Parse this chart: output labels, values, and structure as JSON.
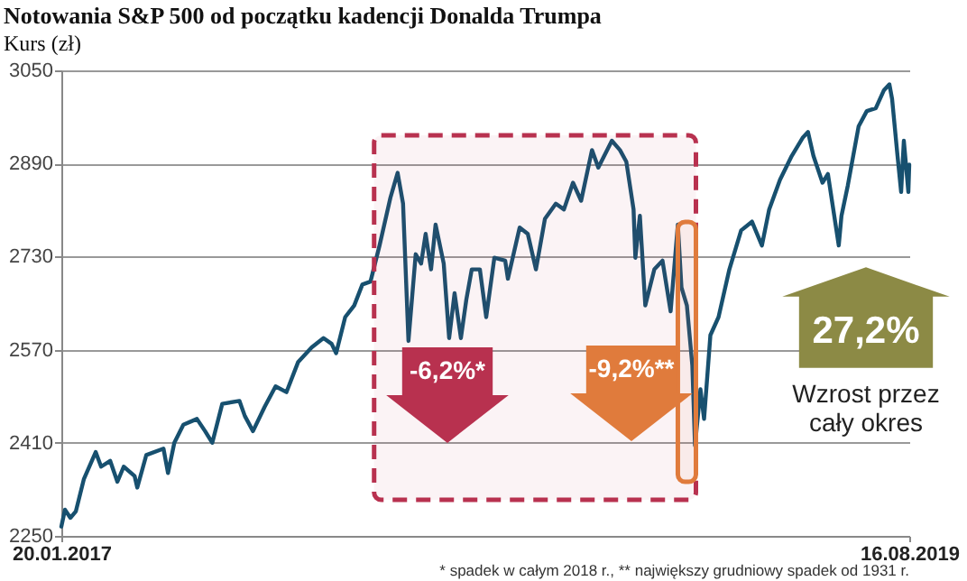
{
  "chart_data": {
    "type": "line",
    "title": "Notowania S&P 500 od początku kadencji Donalda Trumpa",
    "ylabel": "Kurs (zł)",
    "x": [
      "2017-01-20",
      "2017-01-24",
      "2017-01-30",
      "2017-02-05",
      "2017-02-14",
      "2017-02-27",
      "2017-03-05",
      "2017-03-15",
      "2017-03-23",
      "2017-03-30",
      "2017-04-11",
      "2017-04-14",
      "2017-04-24",
      "2017-05-13",
      "2017-05-18",
      "2017-05-25",
      "2017-06-04",
      "2017-06-19",
      "2017-06-28",
      "2017-07-06",
      "2017-07-17",
      "2017-08-05",
      "2017-08-11",
      "2017-08-20",
      "2017-09-02",
      "2017-09-14",
      "2017-09-26",
      "2017-10-09",
      "2017-10-24",
      "2017-11-06",
      "2017-11-15",
      "2017-11-20",
      "2017-11-30",
      "2017-12-10",
      "2017-12-19",
      "2017-12-28",
      "2018-01-07",
      "2018-01-19",
      "2018-01-27",
      "2018-02-02",
      "2018-02-08",
      "2018-02-16",
      "2018-02-22",
      "2018-02-27",
      "2018-03-05",
      "2018-03-10",
      "2018-03-19",
      "2018-03-25",
      "2018-03-31",
      "2018-04-07",
      "2018-04-13",
      "2018-04-19",
      "2018-04-28",
      "2018-05-05",
      "2018-05-14",
      "2018-05-26",
      "2018-05-29",
      "2018-06-11",
      "2018-06-20",
      "2018-06-29",
      "2018-07-09",
      "2018-07-21",
      "2018-07-30",
      "2018-08-09",
      "2018-08-18",
      "2018-08-30",
      "2018-09-06",
      "2018-09-21",
      "2018-09-30",
      "2018-10-07",
      "2018-10-15",
      "2018-10-17",
      "2018-10-22",
      "2018-10-28",
      "2018-11-07",
      "2018-11-16",
      "2018-11-25",
      "2018-12-03",
      "2018-12-07",
      "2018-12-13",
      "2018-12-19",
      "2018-12-22",
      "2018-12-28",
      "2019-01-01",
      "2019-01-08",
      "2019-01-17",
      "2019-01-29",
      "2019-02-11",
      "2019-02-23",
      "2019-03-06",
      "2019-03-14",
      "2019-03-26",
      "2019-04-08",
      "2019-04-20",
      "2019-04-26",
      "2019-05-02",
      "2019-05-12",
      "2019-05-18",
      "2019-05-30",
      "2019-06-02",
      "2019-06-09",
      "2019-06-21",
      "2019-06-30",
      "2019-07-10",
      "2019-07-19",
      "2019-07-25",
      "2019-07-28",
      "2019-08-03",
      "2019-08-07",
      "2019-08-10",
      "2019-08-15",
      "2019-08-16"
    ],
    "series": [
      {
        "color": "#17506f",
        "values": [
          2266,
          2295,
          2281,
          2292,
          2348,
          2394,
          2369,
          2379,
          2343,
          2369,
          2353,
          2333,
          2389,
          2400,
          2358,
          2410,
          2441,
          2451,
          2430,
          2410,
          2477,
          2482,
          2456,
          2430,
          2472,
          2507,
          2497,
          2549,
          2574,
          2590,
          2580,
          2564,
          2626,
          2646,
          2682,
          2687,
          2749,
          2831,
          2874,
          2821,
          2585,
          2734,
          2718,
          2769,
          2708,
          2785,
          2718,
          2590,
          2667,
          2590,
          2656,
          2708,
          2708,
          2626,
          2728,
          2723,
          2692,
          2780,
          2769,
          2708,
          2795,
          2821,
          2811,
          2857,
          2826,
          2913,
          2883,
          2929,
          2913,
          2893,
          2811,
          2728,
          2800,
          2646,
          2708,
          2723,
          2636,
          2785,
          2677,
          2646,
          2543,
          2405,
          2502,
          2451,
          2595,
          2626,
          2708,
          2775,
          2790,
          2749,
          2811,
          2862,
          2903,
          2934,
          2944,
          2903,
          2857,
          2872,
          2749,
          2800,
          2852,
          2954,
          2980,
          2985,
          3016,
          3026,
          3001,
          2903,
          2841,
          2929,
          2841,
          2888
        ]
      }
    ],
    "xlim": [
      "2017-01-20",
      "2019-08-16"
    ],
    "xticks": [
      {
        "value": "2017-01-20",
        "label": "20.01.2017"
      },
      {
        "value": "2019-08-16",
        "label": "16.08.2019"
      }
    ],
    "ylim": [
      2250,
      3050
    ],
    "yticks": [
      2250,
      2410,
      2570,
      2730,
      2890,
      3050
    ],
    "grid": "y",
    "marker": "none",
    "line_style": "solid",
    "bands": [
      {
        "axis": "x",
        "from": "2018-01-01",
        "to": "2018-12-23",
        "label": "-6,2%*",
        "color": "#b8314f"
      },
      {
        "axis": "x",
        "from": "2018-12-03",
        "to": "2018-12-23",
        "label": "-9,2%**",
        "color": "#e07b3c"
      }
    ],
    "annotations": [
      "27,2%",
      "Wzrost przez cały okres",
      "* spadek w całym 2018 r., ** największy grudniowy spadek od 1931 r."
    ]
  }
}
